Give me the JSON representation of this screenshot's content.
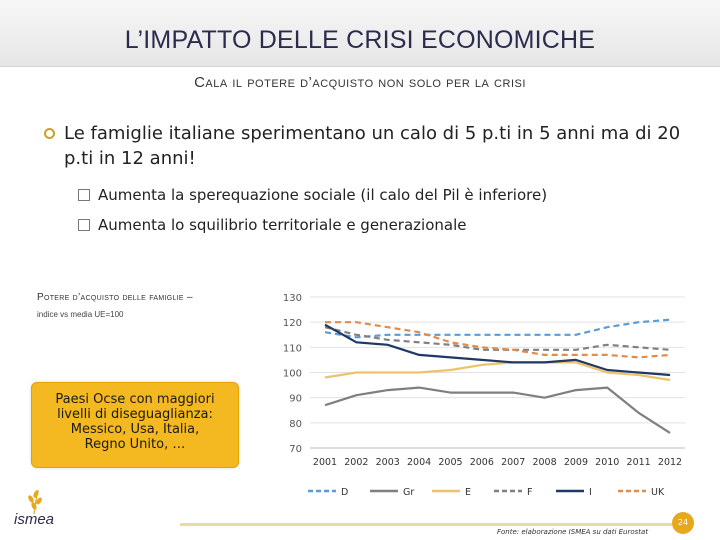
{
  "slide": {
    "title": "L’IMPATTO DELLE CRISI ECONOMICHE",
    "subtitle": "Cala il potere d’acquisto non solo per la crisi",
    "bullet_main": "Le famiglie italiane sperimentano un calo di 5 p.ti in 5 anni ma di 20 p.ti in 12 anni!",
    "sub_bullets": [
      "Aumenta la sperequazione sociale (il calo del Pil è inferiore)",
      "Aumenta lo squilibrio territoriale e generazionale"
    ],
    "chart_caption": "Potere d’acquisto delle famiglie –",
    "chart_caption2": "indice vs media UE=100",
    "callout_lines": [
      "Paesi Ocse con maggiori",
      "livelli di diseguaglianza:",
      "Messico, Usa, Italia,",
      "Regno Unito, …"
    ],
    "source": "Fonte: elaborazione ISMEA su dati Eurostat",
    "page_number": "24",
    "logo_text": "ismea",
    "colors": {
      "gold": "#f4b820",
      "navy": "#2b2b4f",
      "accent": "#e6a91c"
    }
  },
  "chart_data": {
    "type": "line",
    "x": [
      "2001",
      "2002",
      "2003",
      "2004",
      "2005",
      "2006",
      "2007",
      "2008",
      "2009",
      "2010",
      "2011",
      "2012"
    ],
    "ylim": [
      70,
      130
    ],
    "yticks": [
      70,
      80,
      90,
      100,
      110,
      120,
      130
    ],
    "grid": true,
    "legend_position": "bottom",
    "series": [
      {
        "name": "D",
        "color": "#5b9bd5",
        "dash": "6,4",
        "values": [
          116,
          114,
          115,
          115,
          115,
          115,
          115,
          115,
          115,
          118,
          120,
          121
        ]
      },
      {
        "name": "Gr",
        "color": "#7f7f7f",
        "dash": "",
        "values": [
          87,
          91,
          93,
          94,
          92,
          92,
          92,
          90,
          93,
          94,
          84,
          76
        ]
      },
      {
        "name": "E",
        "color": "#ecc36a",
        "dash": "",
        "values": [
          98,
          100,
          100,
          100,
          101,
          103,
          104,
          104,
          104,
          100,
          99,
          97
        ]
      },
      {
        "name": "F",
        "color": "#808080",
        "dash": "6,4",
        "values": [
          118,
          115,
          113,
          112,
          111,
          109,
          109,
          109,
          109,
          111,
          110,
          109
        ]
      },
      {
        "name": "I",
        "color": "#1f3864",
        "dash": "",
        "values": [
          119,
          112,
          111,
          107,
          106,
          105,
          104,
          104,
          105,
          101,
          100,
          99
        ]
      },
      {
        "name": "UK",
        "color": "#e08c4b",
        "dash": "6,4",
        "values": [
          120,
          120,
          118,
          116,
          112,
          110,
          109,
          107,
          107,
          107,
          106,
          107
        ]
      }
    ]
  }
}
